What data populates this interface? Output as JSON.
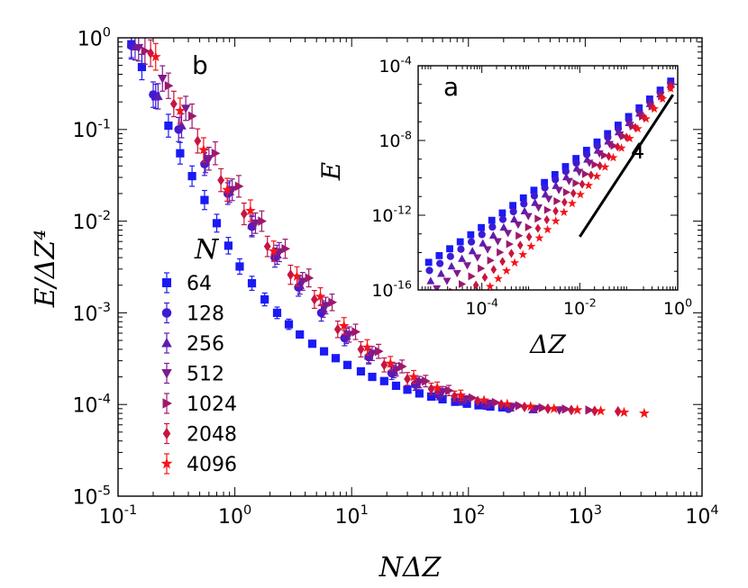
{
  "chart_data": [
    {
      "id": "main",
      "panel_label": "b",
      "type": "scatter",
      "xscale": "log",
      "yscale": "log",
      "xlim": [
        0.1,
        10000
      ],
      "ylim": [
        1e-05,
        1
      ],
      "xlabel": "NΔZ",
      "ylabel": "E/ΔZ⁴",
      "x_ticks": [
        {
          "value": 0.1,
          "base": "10",
          "exp": "-1"
        },
        {
          "value": 1,
          "base": "10",
          "exp": "0"
        },
        {
          "value": 10,
          "base": "10",
          "exp": "1"
        },
        {
          "value": 100,
          "base": "10",
          "exp": "2"
        },
        {
          "value": 1000,
          "base": "10",
          "exp": "3"
        },
        {
          "value": 10000,
          "base": "10",
          "exp": "4"
        }
      ],
      "y_ticks": [
        {
          "value": 1e-05,
          "base": "10",
          "exp": "-5"
        },
        {
          "value": 0.0001,
          "base": "10",
          "exp": "-4"
        },
        {
          "value": 0.001,
          "base": "10",
          "exp": "-3"
        },
        {
          "value": 0.01,
          "base": "10",
          "exp": "-2"
        },
        {
          "value": 0.1,
          "base": "10",
          "exp": "-1"
        },
        {
          "value": 1,
          "base": "10",
          "exp": "0"
        }
      ],
      "legend": {
        "title": "N",
        "placement": "left-center"
      },
      "series": [
        {
          "name": "64",
          "marker": "square",
          "color": "#1a1af5",
          "x": [
            0.13,
            0.16,
            0.21,
            0.27,
            0.34,
            0.43,
            0.55,
            0.7,
            0.88,
            1.1,
            1.4,
            1.8,
            2.3,
            2.9,
            3.6,
            4.6,
            5.8,
            7.3,
            9.2,
            12,
            15,
            19,
            24,
            30,
            38,
            48,
            60,
            77,
            97,
            122,
            154,
            195
          ],
          "y": [
            0.85,
            0.48,
            0.23,
            0.11,
            0.055,
            0.031,
            0.017,
            0.0095,
            0.0054,
            0.0032,
            0.0021,
            0.0014,
            0.001,
            0.00075,
            0.00058,
            0.00046,
            0.00038,
            0.00032,
            0.00027,
            0.00023,
            0.0002,
            0.00018,
            0.00016,
            0.000145,
            0.000132,
            0.000122,
            0.000114,
            0.000107,
            0.000102,
            9.8e-05,
            9.5e-05,
            9.3e-05
          ]
        },
        {
          "name": "128",
          "marker": "circle",
          "color": "#3d1bd6",
          "x": [
            0.13,
            0.2,
            0.33,
            0.55,
            0.87,
            1.4,
            2.2,
            3.5,
            5.5,
            8.7,
            14,
            22,
            35,
            55,
            87,
            138,
            220
          ],
          "y": [
            0.82,
            0.24,
            0.1,
            0.042,
            0.02,
            0.0087,
            0.004,
            0.0019,
            0.001,
            0.00053,
            0.00033,
            0.00022,
            0.000165,
            0.000128,
            0.000108,
            9.7e-05,
            9e-05
          ]
        },
        {
          "name": "256",
          "marker": "triangle-up",
          "color": "#5e1bb3",
          "x": [
            0.14,
            0.22,
            0.35,
            0.56,
            0.9,
            1.4,
            2.3,
            3.6,
            5.7,
            9,
            14,
            23,
            36,
            57,
            90,
            143,
            226,
            358
          ],
          "y": [
            0.8,
            0.23,
            0.11,
            0.045,
            0.021,
            0.009,
            0.0043,
            0.002,
            0.0011,
            0.00056,
            0.00034,
            0.00023,
            0.000168,
            0.000132,
            0.000111,
            0.0001,
            9.2e-05,
            8.8e-05
          ]
        },
        {
          "name": "512",
          "marker": "triangle-down",
          "color": "#7e1a8f",
          "x": [
            0.15,
            0.24,
            0.38,
            0.6,
            0.95,
            1.5,
            2.4,
            3.8,
            6,
            9.5,
            15,
            24,
            38,
            60,
            95,
            151,
            239,
            379,
            600
          ],
          "y": [
            0.78,
            0.36,
            0.17,
            0.048,
            0.022,
            0.0095,
            0.0046,
            0.0022,
            0.0012,
            0.00058,
            0.00036,
            0.00024,
            0.000175,
            0.000138,
            0.000115,
            0.000103,
            9.5e-05,
            9e-05,
            8.7e-05
          ]
        },
        {
          "name": "1024",
          "marker": "triangle-right",
          "color": "#9e186c",
          "x": [
            0.17,
            0.27,
            0.43,
            0.68,
            1.08,
            1.7,
            2.7,
            4.3,
            6.8,
            10.8,
            17,
            27,
            43,
            68,
            108,
            171,
            271,
            429,
            680,
            1078
          ],
          "y": [
            0.72,
            0.3,
            0.14,
            0.055,
            0.024,
            0.01,
            0.005,
            0.0024,
            0.0013,
            0.00062,
            0.00038,
            0.00026,
            0.00018,
            0.000142,
            0.000118,
            0.000105,
            9.7e-05,
            9.2e-05,
            8.9e-05,
            8.7e-05
          ]
        },
        {
          "name": "2048",
          "marker": "diamond",
          "color": "#c71540",
          "x": [
            0.19,
            0.3,
            0.48,
            0.76,
            1.2,
            1.9,
            3,
            4.8,
            7.6,
            12,
            19,
            30,
            48,
            76,
            120,
            191,
            302,
            479,
            760,
            1204,
            1908
          ],
          "y": [
            0.68,
            0.19,
            0.075,
            0.028,
            0.012,
            0.0053,
            0.0026,
            0.0014,
            0.00066,
            0.0004,
            0.00027,
            0.00019,
            0.000148,
            0.000123,
            0.000109,
            0.0001,
            9.4e-05,
            9e-05,
            8.7e-05,
            8.5e-05,
            8.4e-05
          ]
        },
        {
          "name": "4096",
          "marker": "star",
          "color": "#f5141a",
          "x": [
            0.21,
            0.34,
            0.54,
            0.86,
            1.36,
            2.15,
            3.4,
            5.4,
            8.6,
            13.6,
            21.5,
            34,
            54,
            86,
            136,
            215,
            341,
            540,
            856,
            1357,
            2150,
            3200
          ],
          "y": [
            0.62,
            0.16,
            0.06,
            0.022,
            0.013,
            0.0047,
            0.0025,
            0.0015,
            0.00072,
            0.00042,
            0.00028,
            0.0002,
            0.000152,
            0.000126,
            0.000111,
            0.000101,
            9.5e-05,
            9e-05,
            8.7e-05,
            8.5e-05,
            8.2e-05,
            8e-05
          ]
        }
      ]
    },
    {
      "id": "inset",
      "panel_label": "a",
      "type": "scatter",
      "xscale": "log",
      "yscale": "log",
      "xlim": [
        5e-06,
        1
      ],
      "ylim": [
        1e-16,
        0.0001
      ],
      "xlabel": "ΔZ",
      "ylabel": "E",
      "x_ticks": [
        {
          "value": 0.0001,
          "base": "10",
          "exp": "-4"
        },
        {
          "value": 0.01,
          "base": "10",
          "exp": "-2"
        },
        {
          "value": 1,
          "base": "10",
          "exp": "0"
        }
      ],
      "y_ticks": [
        {
          "value": 1e-16,
          "base": "10",
          "exp": "-16"
        },
        {
          "value": 1e-12,
          "base": "10",
          "exp": "-12"
        },
        {
          "value": 1e-08,
          "base": "10",
          "exp": "-8"
        },
        {
          "value": 0.0001,
          "base": "10",
          "exp": "-4"
        }
      ],
      "reference_line": {
        "label": "4",
        "slope": 4,
        "x": [
          0.01,
          0.8
        ],
        "y": [
          7e-14,
          2.8e-06
        ]
      },
      "series": [
        {
          "name": "64",
          "start": 8.2e-06,
          "start_y": 3e-15,
          "end_y": 1.5e-05
        },
        {
          "name": "128",
          "start": 8.5e-06,
          "start_y": 1.1e-15,
          "end_y": 1.2e-05
        },
        {
          "name": "256",
          "start": 9e-06,
          "start_y": 3e-16,
          "end_y": 1e-05
        },
        {
          "name": "512",
          "start": 1.2e-05,
          "start_y": 1.2e-16,
          "end_y": 9e-06
        },
        {
          "name": "1024",
          "start": 2.5e-05,
          "start_y": 8e-17,
          "end_y": 8e-06
        },
        {
          "name": "2048",
          "start": 5e-05,
          "start_y": 7e-17,
          "end_y": 7e-06
        },
        {
          "name": "4096",
          "start": 0.0001,
          "start_y": 6e-17,
          "end_y": 6e-06
        }
      ]
    }
  ]
}
